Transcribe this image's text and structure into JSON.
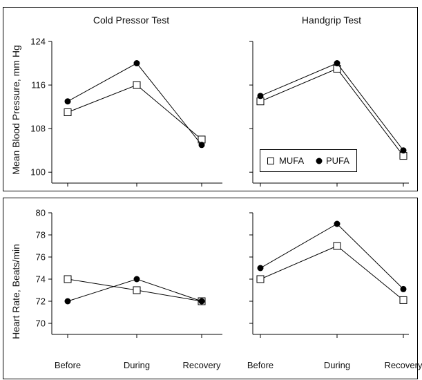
{
  "figure": {
    "col_titles": [
      "Cold Pressor Test",
      "Handgrip Test"
    ],
    "row_ylabels": [
      "Mean Blood Pressure, mm Hg",
      "Heart Rate, Beats/min"
    ]
  },
  "legend": {
    "items": [
      {
        "name": "MUFA",
        "marker": "open-square"
      },
      {
        "name": "PUFA",
        "marker": "filled-circle"
      }
    ]
  },
  "chart_data": [
    {
      "type": "line",
      "title": "Cold Pressor Test",
      "ylabel": "Mean Blood Pressure, mm Hg",
      "categories": [
        "Before",
        "During",
        "Recovery"
      ],
      "ylim": [
        98,
        124
      ],
      "yticks": [
        100,
        108,
        116,
        124
      ],
      "series": [
        {
          "name": "MUFA",
          "values": [
            111,
            116,
            106
          ]
        },
        {
          "name": "PUFA",
          "values": [
            113,
            120,
            105
          ]
        }
      ]
    },
    {
      "type": "line",
      "title": "Handgrip Test",
      "ylabel": "",
      "categories": [
        "Before",
        "During",
        "Recovery"
      ],
      "ylim": [
        98,
        124
      ],
      "yticks": [
        100,
        108,
        116,
        124
      ],
      "series": [
        {
          "name": "MUFA",
          "values": [
            113,
            119,
            103
          ]
        },
        {
          "name": "PUFA",
          "values": [
            114,
            120,
            104
          ]
        }
      ],
      "legend": "bottom-left"
    },
    {
      "type": "line",
      "title": "",
      "ylabel": "Heart Rate, Beats/min",
      "categories": [
        "Before",
        "During",
        "Recovery"
      ],
      "ylim": [
        69,
        80
      ],
      "yticks": [
        70,
        72,
        74,
        76,
        78,
        80
      ],
      "series": [
        {
          "name": "MUFA",
          "values": [
            74,
            73,
            72
          ]
        },
        {
          "name": "PUFA",
          "values": [
            72,
            74,
            72
          ]
        }
      ]
    },
    {
      "type": "line",
      "title": "",
      "ylabel": "",
      "categories": [
        "Before",
        "During",
        "Recovery"
      ],
      "ylim": [
        69,
        80
      ],
      "yticks": [
        70,
        72,
        74,
        76,
        78,
        80
      ],
      "series": [
        {
          "name": "MUFA",
          "values": [
            74,
            77,
            72.1
          ]
        },
        {
          "name": "PUFA",
          "values": [
            75,
            79,
            73.1
          ]
        }
      ]
    }
  ]
}
